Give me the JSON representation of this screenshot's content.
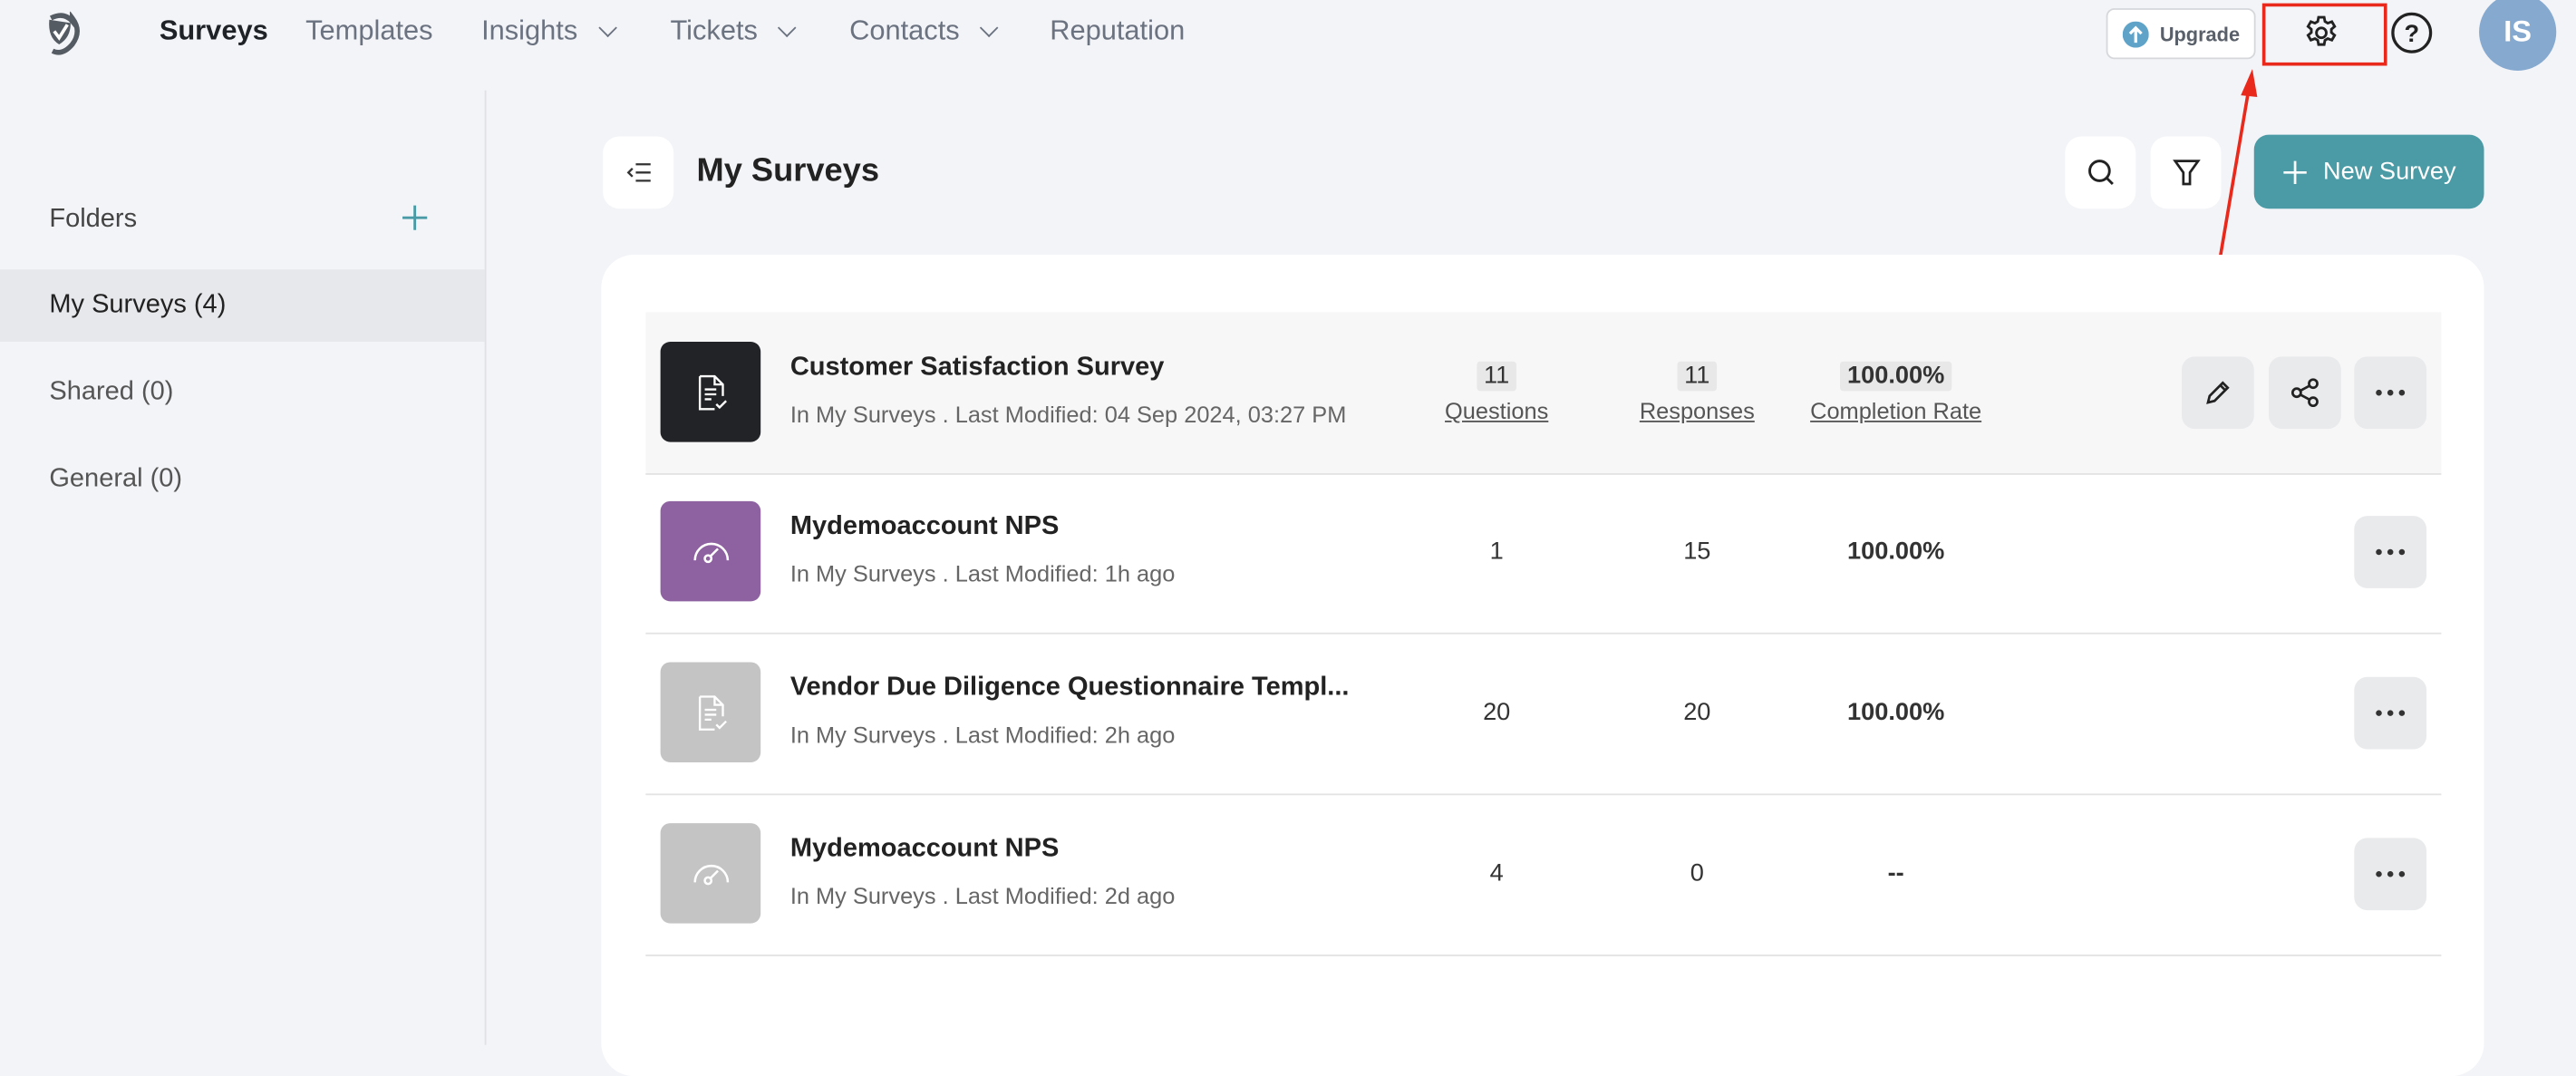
{
  "nav": {
    "items": [
      {
        "label": "Surveys",
        "active": true
      },
      {
        "label": "Templates"
      },
      {
        "label": "Insights",
        "dropdown": true
      },
      {
        "label": "Tickets",
        "dropdown": true
      },
      {
        "label": "Contacts",
        "dropdown": true
      },
      {
        "label": "Reputation"
      }
    ],
    "upgrade_label": "Upgrade",
    "avatar_initials": "IS"
  },
  "sidebar": {
    "folders_label": "Folders",
    "items": [
      {
        "label": "My Surveys (4)",
        "selected": true
      },
      {
        "label": "Shared (0)"
      },
      {
        "label": "General (0)"
      }
    ]
  },
  "main": {
    "title": "My Surveys",
    "new_survey_label": "New Survey",
    "surveys": [
      {
        "title": "Customer Satisfaction Survey",
        "subtitle": "In My Surveys . Last Modified: 04 Sep 2024, 03:27 PM",
        "questions": "11",
        "responses": "11",
        "completion": "100.00%",
        "icon": "document-check-icon",
        "icon_bg": "#222326",
        "hovered": true
      },
      {
        "title": "Mydemoaccount NPS",
        "subtitle": "In My Surveys . Last Modified: 1h ago",
        "questions": "1",
        "responses": "15",
        "completion": "100.00%",
        "icon": "gauge-icon",
        "icon_bg": "#8e62a0"
      },
      {
        "title": "Vendor Due Diligence Questionnaire Templ...",
        "subtitle": "In My Surveys . Last Modified: 2h ago",
        "questions": "20",
        "responses": "20",
        "completion": "100.00%",
        "icon": "document-check-icon",
        "icon_bg": "#c4c4c4"
      },
      {
        "title": "Mydemoaccount NPS",
        "subtitle": "In My Surveys . Last Modified: 2d ago",
        "questions": "4",
        "responses": "0",
        "completion": "--",
        "icon": "gauge-icon",
        "icon_bg": "#c4c4c4"
      }
    ],
    "column_labels": {
      "questions": "Questions",
      "responses": "Responses",
      "completion": "Completion Rate"
    }
  },
  "colors": {
    "accent": "#4a9ba5",
    "annotation": "#e8291c",
    "avatar": "#86a9d0"
  }
}
